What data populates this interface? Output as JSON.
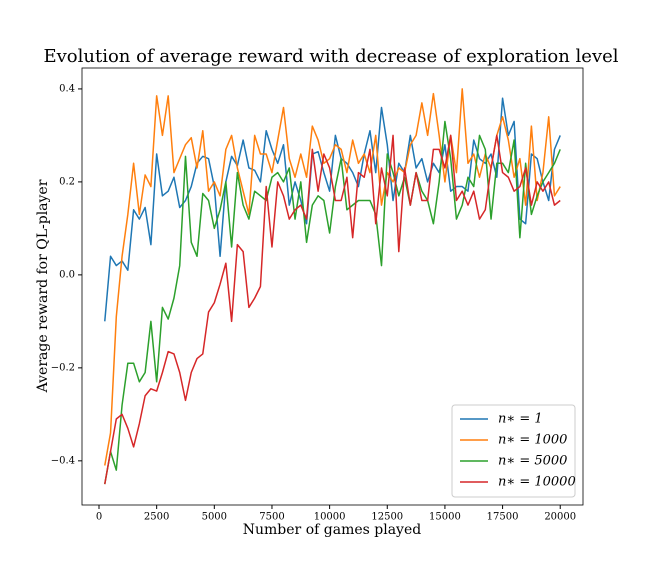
{
  "chart_data": {
    "type": "line",
    "title": "Evolution of average reward with decrease of exploration level",
    "xlabel": "Number of games played",
    "ylabel": "Average reward for QL-player",
    "x": [
      250,
      500,
      750,
      1000,
      1250,
      1500,
      1750,
      2000,
      2250,
      2500,
      2750,
      3000,
      3250,
      3500,
      3750,
      4000,
      4250,
      4500,
      4750,
      5000,
      5250,
      5500,
      5750,
      6000,
      6250,
      6500,
      6750,
      7000,
      7250,
      7500,
      7750,
      8000,
      8250,
      8500,
      8750,
      9000,
      9250,
      9500,
      9750,
      10000,
      10250,
      10500,
      10750,
      11000,
      11250,
      11500,
      11750,
      12000,
      12250,
      12500,
      12750,
      13000,
      13250,
      13500,
      13750,
      14000,
      14250,
      14500,
      14750,
      15000,
      15250,
      15500,
      15750,
      16000,
      16250,
      16500,
      16750,
      17000,
      17250,
      17500,
      17750,
      18000,
      18250,
      18500,
      18750,
      19000,
      19250,
      19500,
      19750,
      20000
    ],
    "series": [
      {
        "name": "n∗ = 1",
        "color": "#1f77b4",
        "values": [
          -0.1,
          0.04,
          0.02,
          0.03,
          0.01,
          0.14,
          0.12,
          0.145,
          0.065,
          0.26,
          0.17,
          0.18,
          0.21,
          0.145,
          0.16,
          0.19,
          0.24,
          0.255,
          0.25,
          0.19,
          0.04,
          0.2,
          0.255,
          0.235,
          0.29,
          0.23,
          0.225,
          0.2,
          0.31,
          0.27,
          0.24,
          0.28,
          0.15,
          0.2,
          0.16,
          0.11,
          0.26,
          0.265,
          0.22,
          0.18,
          0.3,
          0.25,
          0.24,
          0.22,
          0.19,
          0.26,
          0.31,
          0.22,
          0.36,
          0.28,
          0.16,
          0.24,
          0.22,
          0.3,
          0.23,
          0.25,
          0.2,
          0.24,
          0.22,
          0.28,
          0.18,
          0.19,
          0.19,
          0.18,
          0.29,
          0.25,
          0.24,
          0.26,
          0.21,
          0.38,
          0.3,
          0.33,
          0.12,
          0.11,
          0.26,
          0.25,
          0.2,
          0.16,
          0.27,
          0.3
        ]
      },
      {
        "name": "n∗ = 1000",
        "color": "#ff7f0e",
        "values": [
          -0.41,
          -0.34,
          -0.09,
          0.04,
          0.13,
          0.24,
          0.13,
          0.215,
          0.19,
          0.385,
          0.3,
          0.385,
          0.22,
          0.25,
          0.28,
          0.295,
          0.23,
          0.31,
          0.18,
          0.2,
          0.17,
          0.27,
          0.3,
          0.23,
          0.18,
          0.13,
          0.3,
          0.26,
          0.26,
          0.22,
          0.29,
          0.36,
          0.25,
          0.21,
          0.26,
          0.21,
          0.32,
          0.29,
          0.24,
          0.25,
          0.28,
          0.27,
          0.22,
          0.29,
          0.24,
          0.26,
          0.22,
          0.3,
          0.15,
          0.22,
          0.2,
          0.23,
          0.22,
          0.28,
          0.3,
          0.37,
          0.3,
          0.39,
          0.3,
          0.2,
          0.3,
          0.22,
          0.4,
          0.24,
          0.26,
          0.21,
          0.26,
          0.23,
          0.3,
          0.34,
          0.29,
          0.21,
          0.25,
          0.15,
          0.32,
          0.16,
          0.22,
          0.34,
          0.17,
          0.19
        ]
      },
      {
        "name": "n∗ = 5000",
        "color": "#2ca02c",
        "values": [
          -0.45,
          -0.38,
          -0.42,
          -0.28,
          -0.19,
          -0.19,
          -0.23,
          -0.21,
          -0.1,
          -0.23,
          -0.07,
          -0.095,
          -0.05,
          0.02,
          0.255,
          0.07,
          0.04,
          0.175,
          0.16,
          0.1,
          0.14,
          0.2,
          0.06,
          0.22,
          0.15,
          0.12,
          0.18,
          0.17,
          0.16,
          0.21,
          0.22,
          0.2,
          0.23,
          0.12,
          0.2,
          0.07,
          0.15,
          0.17,
          0.16,
          0.09,
          0.19,
          0.25,
          0.14,
          0.15,
          0.16,
          0.16,
          0.16,
          0.13,
          0.02,
          0.26,
          0.22,
          0.17,
          0.21,
          0.15,
          0.22,
          0.18,
          0.16,
          0.11,
          0.2,
          0.33,
          0.25,
          0.12,
          0.15,
          0.21,
          0.19,
          0.3,
          0.27,
          0.12,
          0.24,
          0.24,
          0.22,
          0.29,
          0.08,
          0.24,
          0.13,
          0.17,
          0.2,
          0.22,
          0.24,
          0.27
        ]
      },
      {
        "name": "n∗ = 10000",
        "color": "#d62728",
        "values": [
          -0.45,
          -0.38,
          -0.31,
          -0.3,
          -0.33,
          -0.37,
          -0.32,
          -0.26,
          -0.245,
          -0.25,
          -0.21,
          -0.165,
          -0.17,
          -0.21,
          -0.27,
          -0.21,
          -0.18,
          -0.17,
          -0.08,
          -0.06,
          -0.02,
          0.025,
          -0.1,
          0.065,
          0.05,
          -0.07,
          -0.05,
          -0.025,
          0.19,
          0.06,
          0.2,
          0.17,
          0.12,
          0.14,
          0.15,
          0.12,
          0.27,
          0.18,
          0.26,
          0.23,
          0.16,
          0.16,
          0.21,
          0.08,
          0.22,
          0.21,
          0.27,
          0.11,
          0.23,
          0.17,
          0.3,
          0.05,
          0.23,
          0.15,
          0.22,
          0.16,
          0.16,
          0.27,
          0.27,
          0.23,
          0.3,
          0.16,
          0.18,
          0.15,
          0.18,
          0.12,
          0.14,
          0.23,
          0.3,
          0.22,
          0.21,
          0.18,
          0.19,
          0.23,
          0.15,
          0.2,
          0.18,
          0.2,
          0.15,
          0.16
        ]
      }
    ],
    "xlim": [
      -737.5,
      20987.5
    ],
    "xticks": [
      0,
      2500,
      5000,
      7500,
      10000,
      12500,
      15000,
      17500,
      20000
    ],
    "ylim": [
      -0.495,
      0.445
    ],
    "yticks": [
      {
        "value": -0.4,
        "label": "−0.4"
      },
      {
        "value": -0.2,
        "label": "−0.2"
      },
      {
        "value": 0.0,
        "label": "0.0"
      },
      0.2,
      0.4
    ],
    "legend": "lower right"
  }
}
